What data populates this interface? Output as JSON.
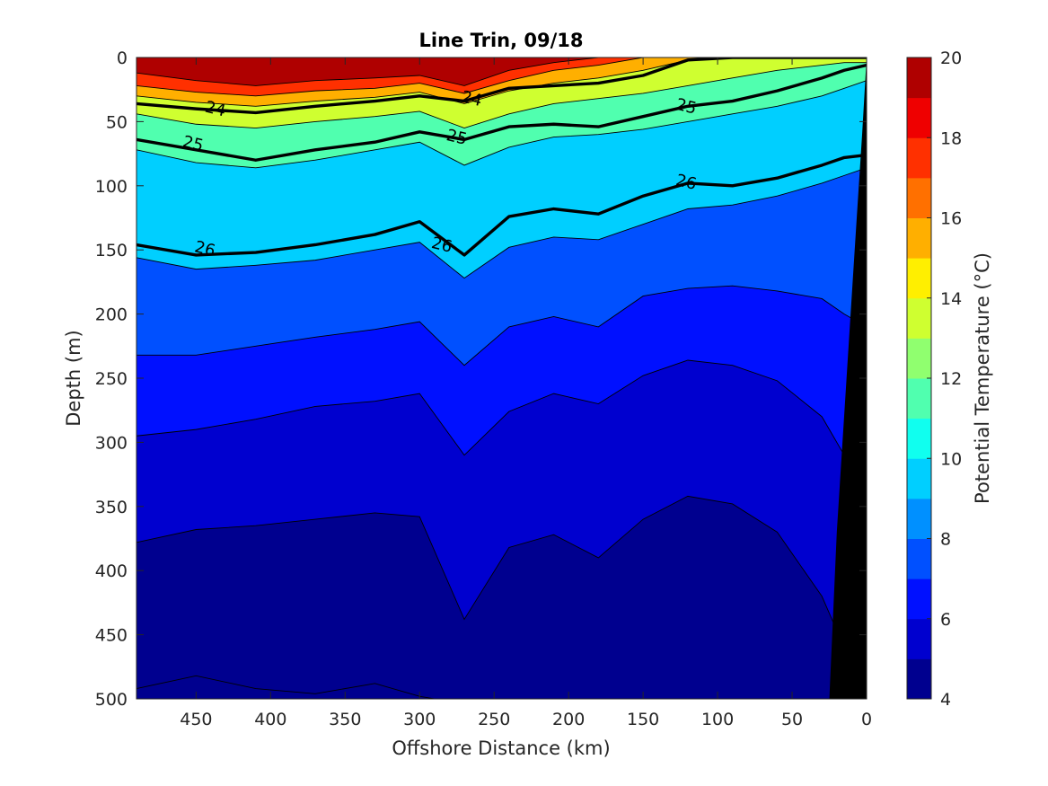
{
  "chart_data": {
    "type": "contour",
    "title": "Line Trin, 09/18",
    "xlabel": "Offshore Distance (km)",
    "ylabel": "Depth (m)",
    "xlim": [
      490,
      0
    ],
    "ylim": [
      0,
      500
    ],
    "xticks": [
      "450",
      "400",
      "350",
      "300",
      "250",
      "200",
      "150",
      "100",
      "50",
      "0"
    ],
    "xtick_values": [
      450,
      400,
      350,
      300,
      250,
      200,
      150,
      100,
      50,
      0
    ],
    "yticks": [
      "0",
      "50",
      "100",
      "150",
      "200",
      "250",
      "300",
      "350",
      "400",
      "450",
      "500"
    ],
    "ytick_values": [
      0,
      50,
      100,
      150,
      200,
      250,
      300,
      350,
      400,
      450,
      500
    ],
    "colorbar": {
      "label": "Potential Temperature (°C)",
      "range": [
        4,
        20
      ],
      "ticks": [
        "4",
        "6",
        "8",
        "10",
        "12",
        "14",
        "16",
        "18",
        "20"
      ],
      "tick_values": [
        4,
        6,
        8,
        10,
        12,
        14,
        16,
        18,
        20
      ],
      "colors": [
        "#00008f",
        "#0000cf",
        "#0010ff",
        "#0050ff",
        "#0090ff",
        "#00cfff",
        "#10ffef",
        "#50ffaf",
        "#90ff6f",
        "#cfff30",
        "#ffef00",
        "#ffaf00",
        "#ff7000",
        "#ff3000",
        "#ef0000",
        "#af0000"
      ]
    },
    "isotherm_depths": {
      "x": [
        490,
        450,
        410,
        370,
        330,
        300,
        270,
        240,
        210,
        180,
        150,
        120,
        90,
        60,
        30,
        15,
        0
      ],
      "levels": [
        {
          "t": 18,
          "depths": [
            12,
            18,
            22,
            18,
            16,
            14,
            22,
            10,
            4,
            0,
            0,
            0,
            0,
            0,
            0,
            0,
            0
          ]
        },
        {
          "t": 16,
          "depths": [
            22,
            27,
            30,
            26,
            24,
            20,
            28,
            18,
            10,
            6,
            0,
            0,
            0,
            0,
            0,
            0,
            0
          ]
        },
        {
          "t": 14,
          "depths": [
            30,
            35,
            38,
            34,
            31,
            27,
            36,
            26,
            20,
            16,
            10,
            2,
            0,
            0,
            0,
            0,
            0
          ]
        },
        {
          "t": 12,
          "depths": [
            44,
            52,
            55,
            50,
            46,
            42,
            55,
            44,
            36,
            32,
            28,
            22,
            16,
            10,
            6,
            4,
            4
          ]
        },
        {
          "t": 10,
          "depths": [
            72,
            82,
            86,
            80,
            72,
            66,
            84,
            70,
            62,
            60,
            56,
            50,
            44,
            38,
            30,
            24,
            18
          ]
        },
        {
          "t": 8,
          "depths": [
            156,
            165,
            162,
            158,
            150,
            144,
            172,
            148,
            140,
            142,
            130,
            118,
            115,
            108,
            98,
            92,
            86
          ]
        },
        {
          "t": 7,
          "depths": [
            232,
            232,
            225,
            218,
            212,
            206,
            240,
            210,
            202,
            210,
            186,
            180,
            178,
            182,
            188,
            200,
            210
          ]
        },
        {
          "t": 6,
          "depths": [
            295,
            290,
            282,
            272,
            268,
            262,
            310,
            276,
            262,
            270,
            248,
            236,
            240,
            252,
            280,
            310,
            330
          ]
        },
        {
          "t": 5,
          "depths": [
            378,
            368,
            365,
            360,
            355,
            358,
            438,
            382,
            372,
            390,
            360,
            342,
            348,
            370,
            420,
            460,
            480
          ]
        },
        {
          "t": 4,
          "depths": [
            492,
            482,
            492,
            496,
            488,
            498,
            504,
            502,
            502,
            502,
            502,
            502,
            502,
            502,
            502,
            502,
            502
          ]
        }
      ]
    },
    "contour_labels": [
      {
        "text": "24",
        "x": 437,
        "y": 40
      },
      {
        "text": "24",
        "x": 265,
        "y": 32
      },
      {
        "text": "25",
        "x": 452,
        "y": 67
      },
      {
        "text": "25",
        "x": 275,
        "y": 62
      },
      {
        "text": "25",
        "x": 121,
        "y": 38
      },
      {
        "text": "26",
        "x": 444,
        "y": 149
      },
      {
        "text": "26",
        "x": 285,
        "y": 146
      },
      {
        "text": "26",
        "x": 121,
        "y": 97
      }
    ],
    "bottom_mask": "black wedge at the coast (x from 0 to ~25 km)"
  }
}
